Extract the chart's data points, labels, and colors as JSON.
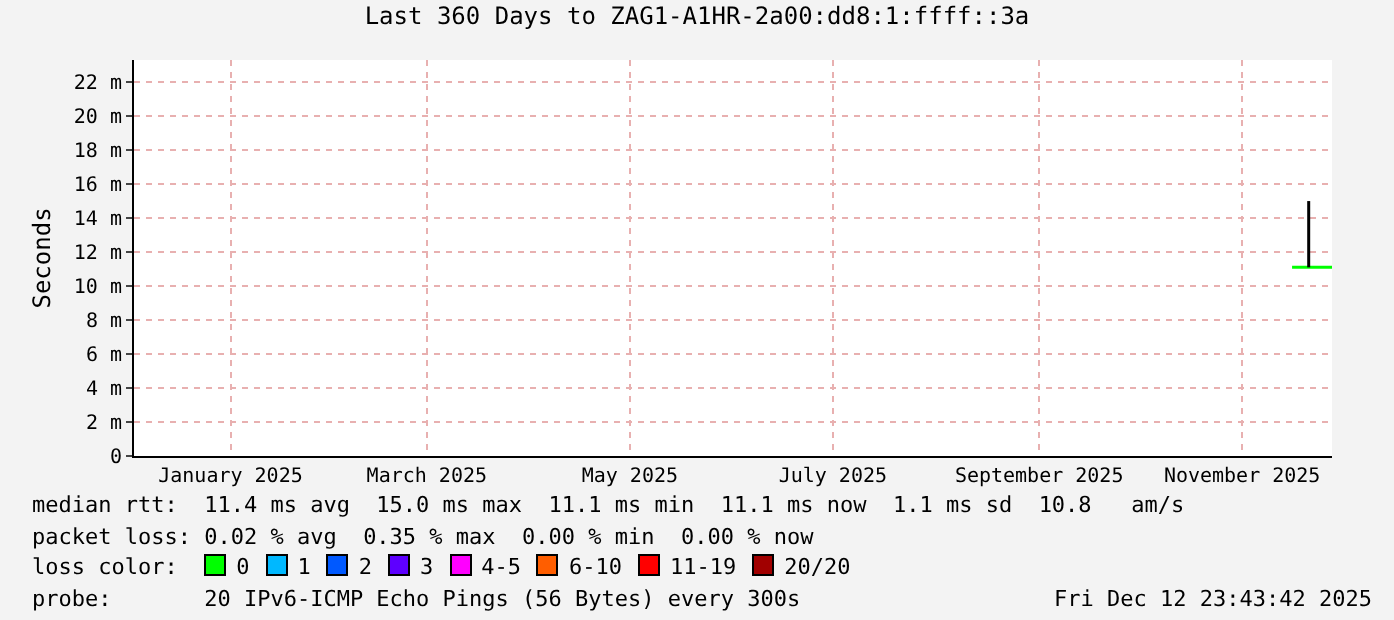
{
  "chart_data": {
    "type": "line",
    "title": "Last 360 Days to ZAG1-A1HR-2a00:dd8:1:ffff::3a",
    "ylabel": "Seconds",
    "xlim": [
      "2024-12-17",
      "2025-12-12"
    ],
    "xticks": [
      {
        "value": "2025-01-15",
        "label": "January 2025"
      },
      {
        "value": "2025-03-15",
        "label": "March 2025"
      },
      {
        "value": "2025-05-15",
        "label": "May 2025"
      },
      {
        "value": "2025-07-15",
        "label": "July 2025"
      },
      {
        "value": "2025-09-15",
        "label": "September 2025"
      },
      {
        "value": "2025-11-15",
        "label": "November 2025"
      }
    ],
    "ylim": [
      0,
      23.3
    ],
    "yticks": [
      0,
      {
        "value": 2,
        "label": "2 m"
      },
      {
        "value": 4,
        "label": "4 m"
      },
      {
        "value": 6,
        "label": "6 m"
      },
      {
        "value": 8,
        "label": "8 m"
      },
      {
        "value": 10,
        "label": "10 m"
      },
      {
        "value": 12,
        "label": "12 m"
      },
      {
        "value": 14,
        "label": "14 m"
      },
      {
        "value": 16,
        "label": "16 m"
      },
      {
        "value": 18,
        "label": "18 m"
      },
      {
        "value": 20,
        "label": "20 m"
      },
      {
        "value": 22,
        "label": "22 m"
      }
    ],
    "grid": true,
    "series": [
      {
        "color": "#00ff00",
        "x": [
          "2025-11-30",
          "2025-12-12"
        ],
        "values": [
          11.1,
          11.1
        ]
      },
      {
        "color": "#000000",
        "x": [
          "2025-12-05",
          "2025-12-05"
        ],
        "values": [
          11.1,
          15.0
        ]
      }
    ],
    "annotations": [
      "median rtt:  11.4 ms avg  15.0 ms max  11.1 ms min  11.1 ms now  1.1 ms sd  10.8   am/s",
      "packet loss: 0.02 % avg  0.35 % max  0.00 % min  0.00 % now",
      "loss color:",
      "0",
      "1",
      "2",
      "3",
      "4-5",
      "6-10",
      "11-19",
      "20/20",
      "probe:       20 IPv6-ICMP Echo Pings (56 Bytes) every 300s",
      "Fri Dec 12 23:43:42 2025"
    ]
  }
}
